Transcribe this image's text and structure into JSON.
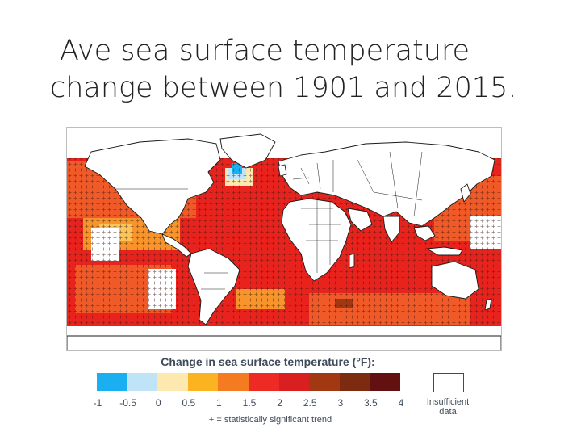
{
  "title": {
    "line1": "Ave sea surface temperature",
    "line2": "change between 1901 and 2015."
  },
  "map": {
    "colors": {
      "ocean_strong": "#e8231e",
      "ocean_mid": "#f05a28",
      "ocean_warm": "#f7942b",
      "ocean_pale": "#fbc45a",
      "cooling_light": "#bfe3f7",
      "cooling_strong": "#1aaff0",
      "darkest": "#a13812",
      "land": "#ffffff",
      "border": "#1a1a1a"
    },
    "significance_marker": "+"
  },
  "legend": {
    "title": "Change in sea surface temperature (°F):",
    "swatches": [
      "#1aaff0",
      "#bfe3f7",
      "#fde8b0",
      "#fcb322",
      "#f47b20",
      "#ee2a24",
      "#d91f1f",
      "#a13812",
      "#7d2b10",
      "#631010"
    ],
    "ticks": [
      "-1",
      "-0.5",
      "0",
      "0.5",
      "1",
      "1.5",
      "2",
      "2.5",
      "3",
      "3.5",
      "4"
    ],
    "insufficient_label": "Insufficient data",
    "significance_note": "+ = statistically significant trend"
  }
}
